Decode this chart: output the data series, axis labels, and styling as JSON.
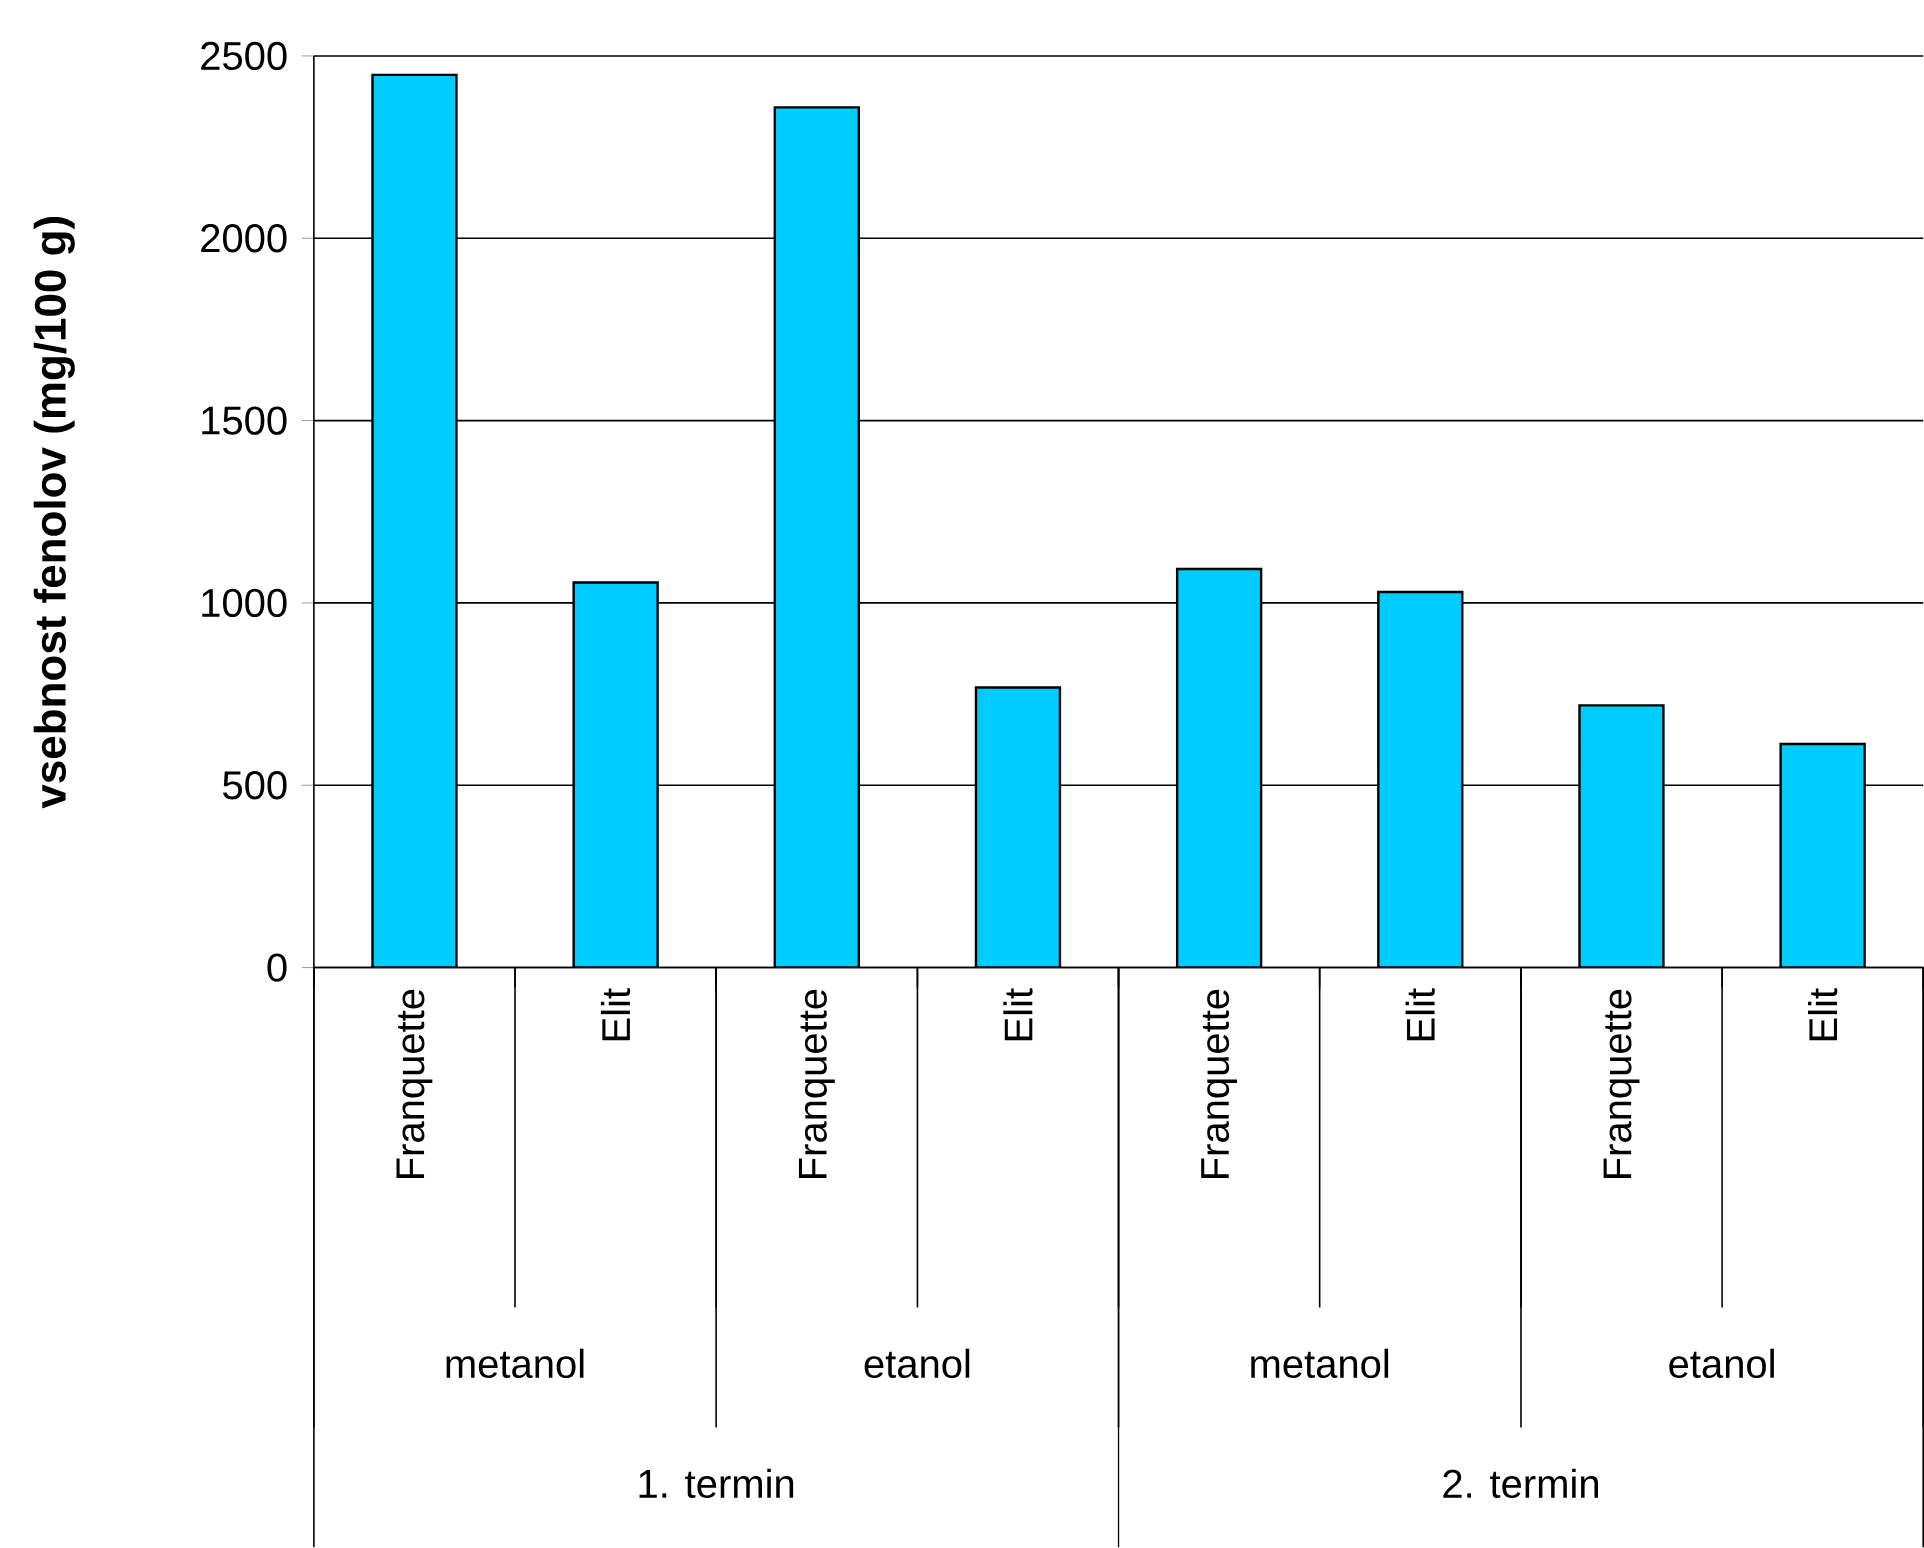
{
  "chart_data": {
    "type": "bar",
    "ylabel": "**vsebnost fenolov (mg/100 g)**",
    "categories": [
      "Franquette",
      "Elit",
      "Franquette",
      "Elit",
      "Franquette",
      "Elit",
      "Franquette",
      "Elit"
    ],
    "values": [
      2448,
      1056,
      2359,
      768,
      1093,
      1030,
      719,
      613
    ],
    "color": "#00ccff",
    "ylim": [
      0,
      2500
    ],
    "yticks": [
      0,
      500,
      1000,
      1500,
      2000,
      2500
    ],
    "grid": "y",
    "annotations": [
      "metanol",
      "etanol",
      "metanol",
      "etanol",
      "1. termin",
      "2. termin"
    ]
  }
}
